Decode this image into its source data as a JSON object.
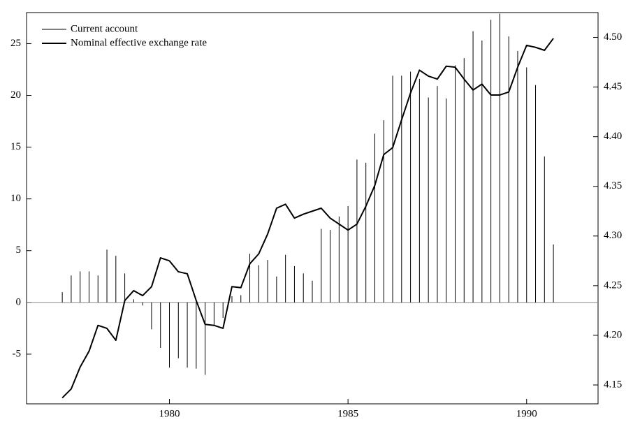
{
  "chart_data": {
    "type": "combo",
    "x": [
      1977.0,
      1977.25,
      1977.5,
      1977.75,
      1978.0,
      1978.25,
      1978.5,
      1978.75,
      1979.0,
      1979.25,
      1979.5,
      1979.75,
      1980.0,
      1980.25,
      1980.5,
      1980.75,
      1981.0,
      1981.25,
      1981.5,
      1981.75,
      1982.0,
      1982.25,
      1982.5,
      1982.75,
      1983.0,
      1983.25,
      1983.5,
      1983.75,
      1984.0,
      1984.25,
      1984.5,
      1984.75,
      1985.0,
      1985.25,
      1985.5,
      1985.75,
      1986.0,
      1986.25,
      1986.5,
      1986.75,
      1987.0,
      1987.25,
      1987.5,
      1987.75,
      1988.0,
      1988.25,
      1988.5,
      1988.75,
      1989.0,
      1989.25,
      1989.5,
      1989.75,
      1990.0,
      1990.25,
      1990.5,
      1990.75
    ],
    "series": [
      {
        "name": "Current account",
        "type": "bar",
        "color": "#000000",
        "values": [
          1.0,
          2.6,
          3.0,
          3.0,
          2.6,
          5.1,
          4.5,
          2.8,
          0.3,
          -0.3,
          -2.6,
          -4.4,
          -6.3,
          -5.4,
          -6.3,
          -6.4,
          -7.0,
          -2.2,
          -1.5,
          0.6,
          0.7,
          4.7,
          3.6,
          4.1,
          2.5,
          4.6,
          3.5,
          2.8,
          2.1,
          7.1,
          7.0,
          8.3,
          9.3,
          13.8,
          13.5,
          16.3,
          17.6,
          21.9,
          21.9,
          22.3,
          21.6,
          19.8,
          20.9,
          19.7,
          22.9,
          23.6,
          26.2,
          25.3,
          27.3,
          27.9,
          25.7,
          24.3,
          22.7,
          21.0,
          14.1,
          5.6
        ]
      },
      {
        "name": "Nominal effective exchange rate",
        "type": "line",
        "axis": "y2",
        "color": "#000000",
        "values": [
          4.137,
          4.146,
          4.168,
          4.184,
          4.21,
          4.207,
          4.195,
          4.235,
          4.245,
          4.24,
          4.249,
          4.278,
          4.275,
          4.264,
          4.262,
          4.235,
          4.211,
          4.21,
          4.207,
          4.249,
          4.248,
          4.272,
          4.282,
          4.302,
          4.328,
          4.332,
          4.318,
          4.322,
          4.325,
          4.328,
          4.318,
          4.312,
          4.306,
          4.312,
          4.33,
          4.351,
          4.382,
          4.389,
          4.417,
          4.444,
          4.467,
          4.461,
          4.458,
          4.471,
          4.47,
          4.458,
          4.447,
          4.453,
          4.442,
          4.442,
          4.445,
          4.47,
          4.492,
          4.49,
          4.487,
          4.499
        ]
      }
    ],
    "xlim": [
      1976,
      1992
    ],
    "xticks": [
      1980,
      1985,
      1990
    ],
    "ylim": [
      -9.8,
      28
    ],
    "yticks": [
      -5,
      0,
      5,
      10,
      15,
      20,
      25
    ],
    "y2lim": [
      4.131,
      4.525
    ],
    "y2ticks": [
      4.15,
      {
        "value": 4.2,
        "label": "4.20"
      },
      4.25,
      {
        "value": 4.3,
        "label": "4.30"
      },
      4.35,
      {
        "value": 4.4,
        "label": "4.40"
      },
      4.45,
      {
        "value": 4.5,
        "label": "4.50"
      }
    ],
    "legend": "top-left"
  }
}
